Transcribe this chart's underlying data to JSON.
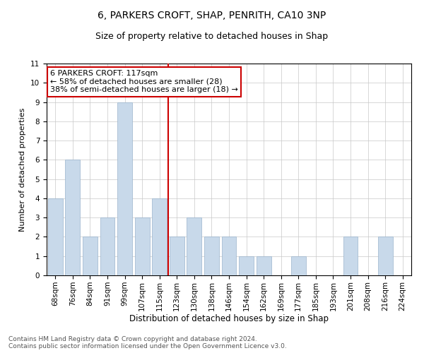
{
  "title1": "6, PARKERS CROFT, SHAP, PENRITH, CA10 3NP",
  "title2": "Size of property relative to detached houses in Shap",
  "xlabel": "Distribution of detached houses by size in Shap",
  "ylabel": "Number of detached properties",
  "categories": [
    "68sqm",
    "76sqm",
    "84sqm",
    "91sqm",
    "99sqm",
    "107sqm",
    "115sqm",
    "123sqm",
    "130sqm",
    "138sqm",
    "146sqm",
    "154sqm",
    "162sqm",
    "169sqm",
    "177sqm",
    "185sqm",
    "193sqm",
    "201sqm",
    "208sqm",
    "216sqm",
    "224sqm"
  ],
  "values": [
    4,
    6,
    2,
    3,
    9,
    3,
    4,
    2,
    3,
    2,
    2,
    1,
    1,
    0,
    1,
    0,
    0,
    2,
    0,
    2,
    0
  ],
  "bar_color": "#c8d9ea",
  "bar_edge_color": "#9ab4cc",
  "annotation_text": "6 PARKERS CROFT: 117sqm\n← 58% of detached houses are smaller (28)\n38% of semi-detached houses are larger (18) →",
  "annotation_box_color": "#ffffff",
  "annotation_box_edge_color": "#cc0000",
  "vline_color": "#cc0000",
  "ylim": [
    0,
    11
  ],
  "yticks": [
    0,
    1,
    2,
    3,
    4,
    5,
    6,
    7,
    8,
    9,
    10,
    11
  ],
  "footnote": "Contains HM Land Registry data © Crown copyright and database right 2024.\nContains public sector information licensed under the Open Government Licence v3.0.",
  "bg_color": "#ffffff",
  "grid_color": "#c8c8c8",
  "title1_fontsize": 10,
  "title2_fontsize": 9,
  "xlabel_fontsize": 8.5,
  "ylabel_fontsize": 8,
  "tick_fontsize": 7.5,
  "annotation_fontsize": 8,
  "footnote_fontsize": 6.5
}
